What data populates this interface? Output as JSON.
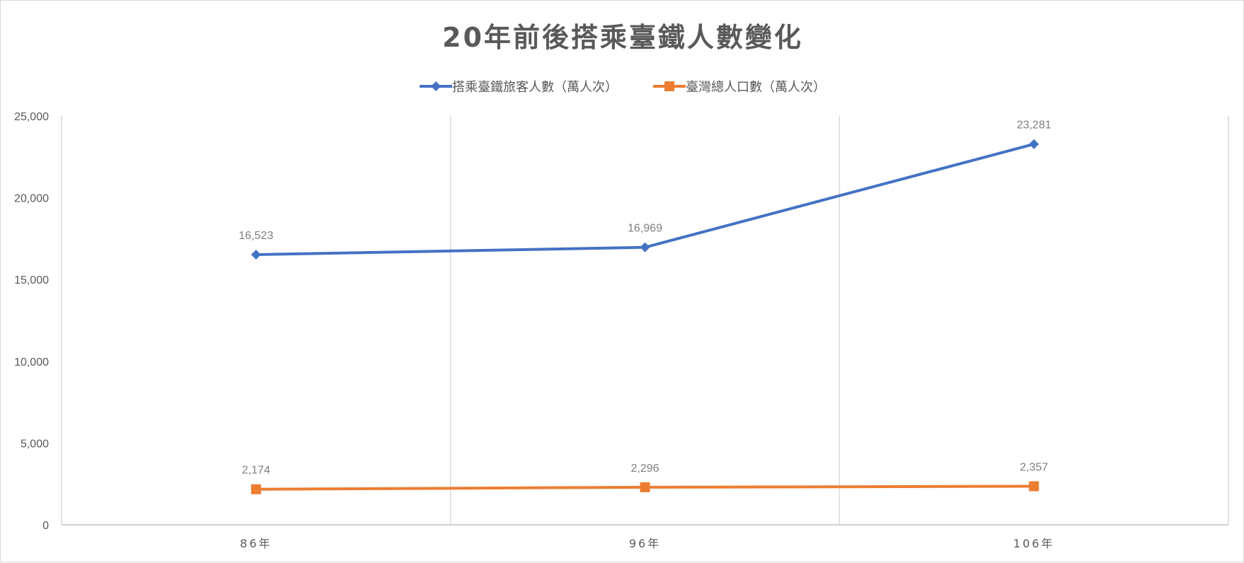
{
  "chart_data": {
    "type": "line",
    "title": "20年前後搭乘臺鐵人數變化",
    "categories": [
      "86年",
      "96年",
      "106年"
    ],
    "series": [
      {
        "name": "搭乘臺鐵旅客人數（萬人次）",
        "values": [
          16523,
          16969,
          23281
        ],
        "labels": [
          "16,523",
          "16,969",
          "23,281"
        ],
        "color": "#4472C4",
        "marker": "diamond"
      },
      {
        "name": "臺灣總人口數（萬人次）",
        "values": [
          2174,
          2296,
          2357
        ],
        "labels": [
          "2,174",
          "2,296",
          "2,357"
        ],
        "color": "#ED7D31",
        "marker": "square"
      }
    ],
    "yticks": [
      0,
      5000,
      10000,
      15000,
      20000,
      25000
    ],
    "ytick_labels": [
      "0",
      "5,000",
      "10,000",
      "15,000",
      "20,000",
      "25,000"
    ],
    "ylim": [
      0,
      25000
    ],
    "grid": "vertical",
    "legend_position": "top"
  }
}
